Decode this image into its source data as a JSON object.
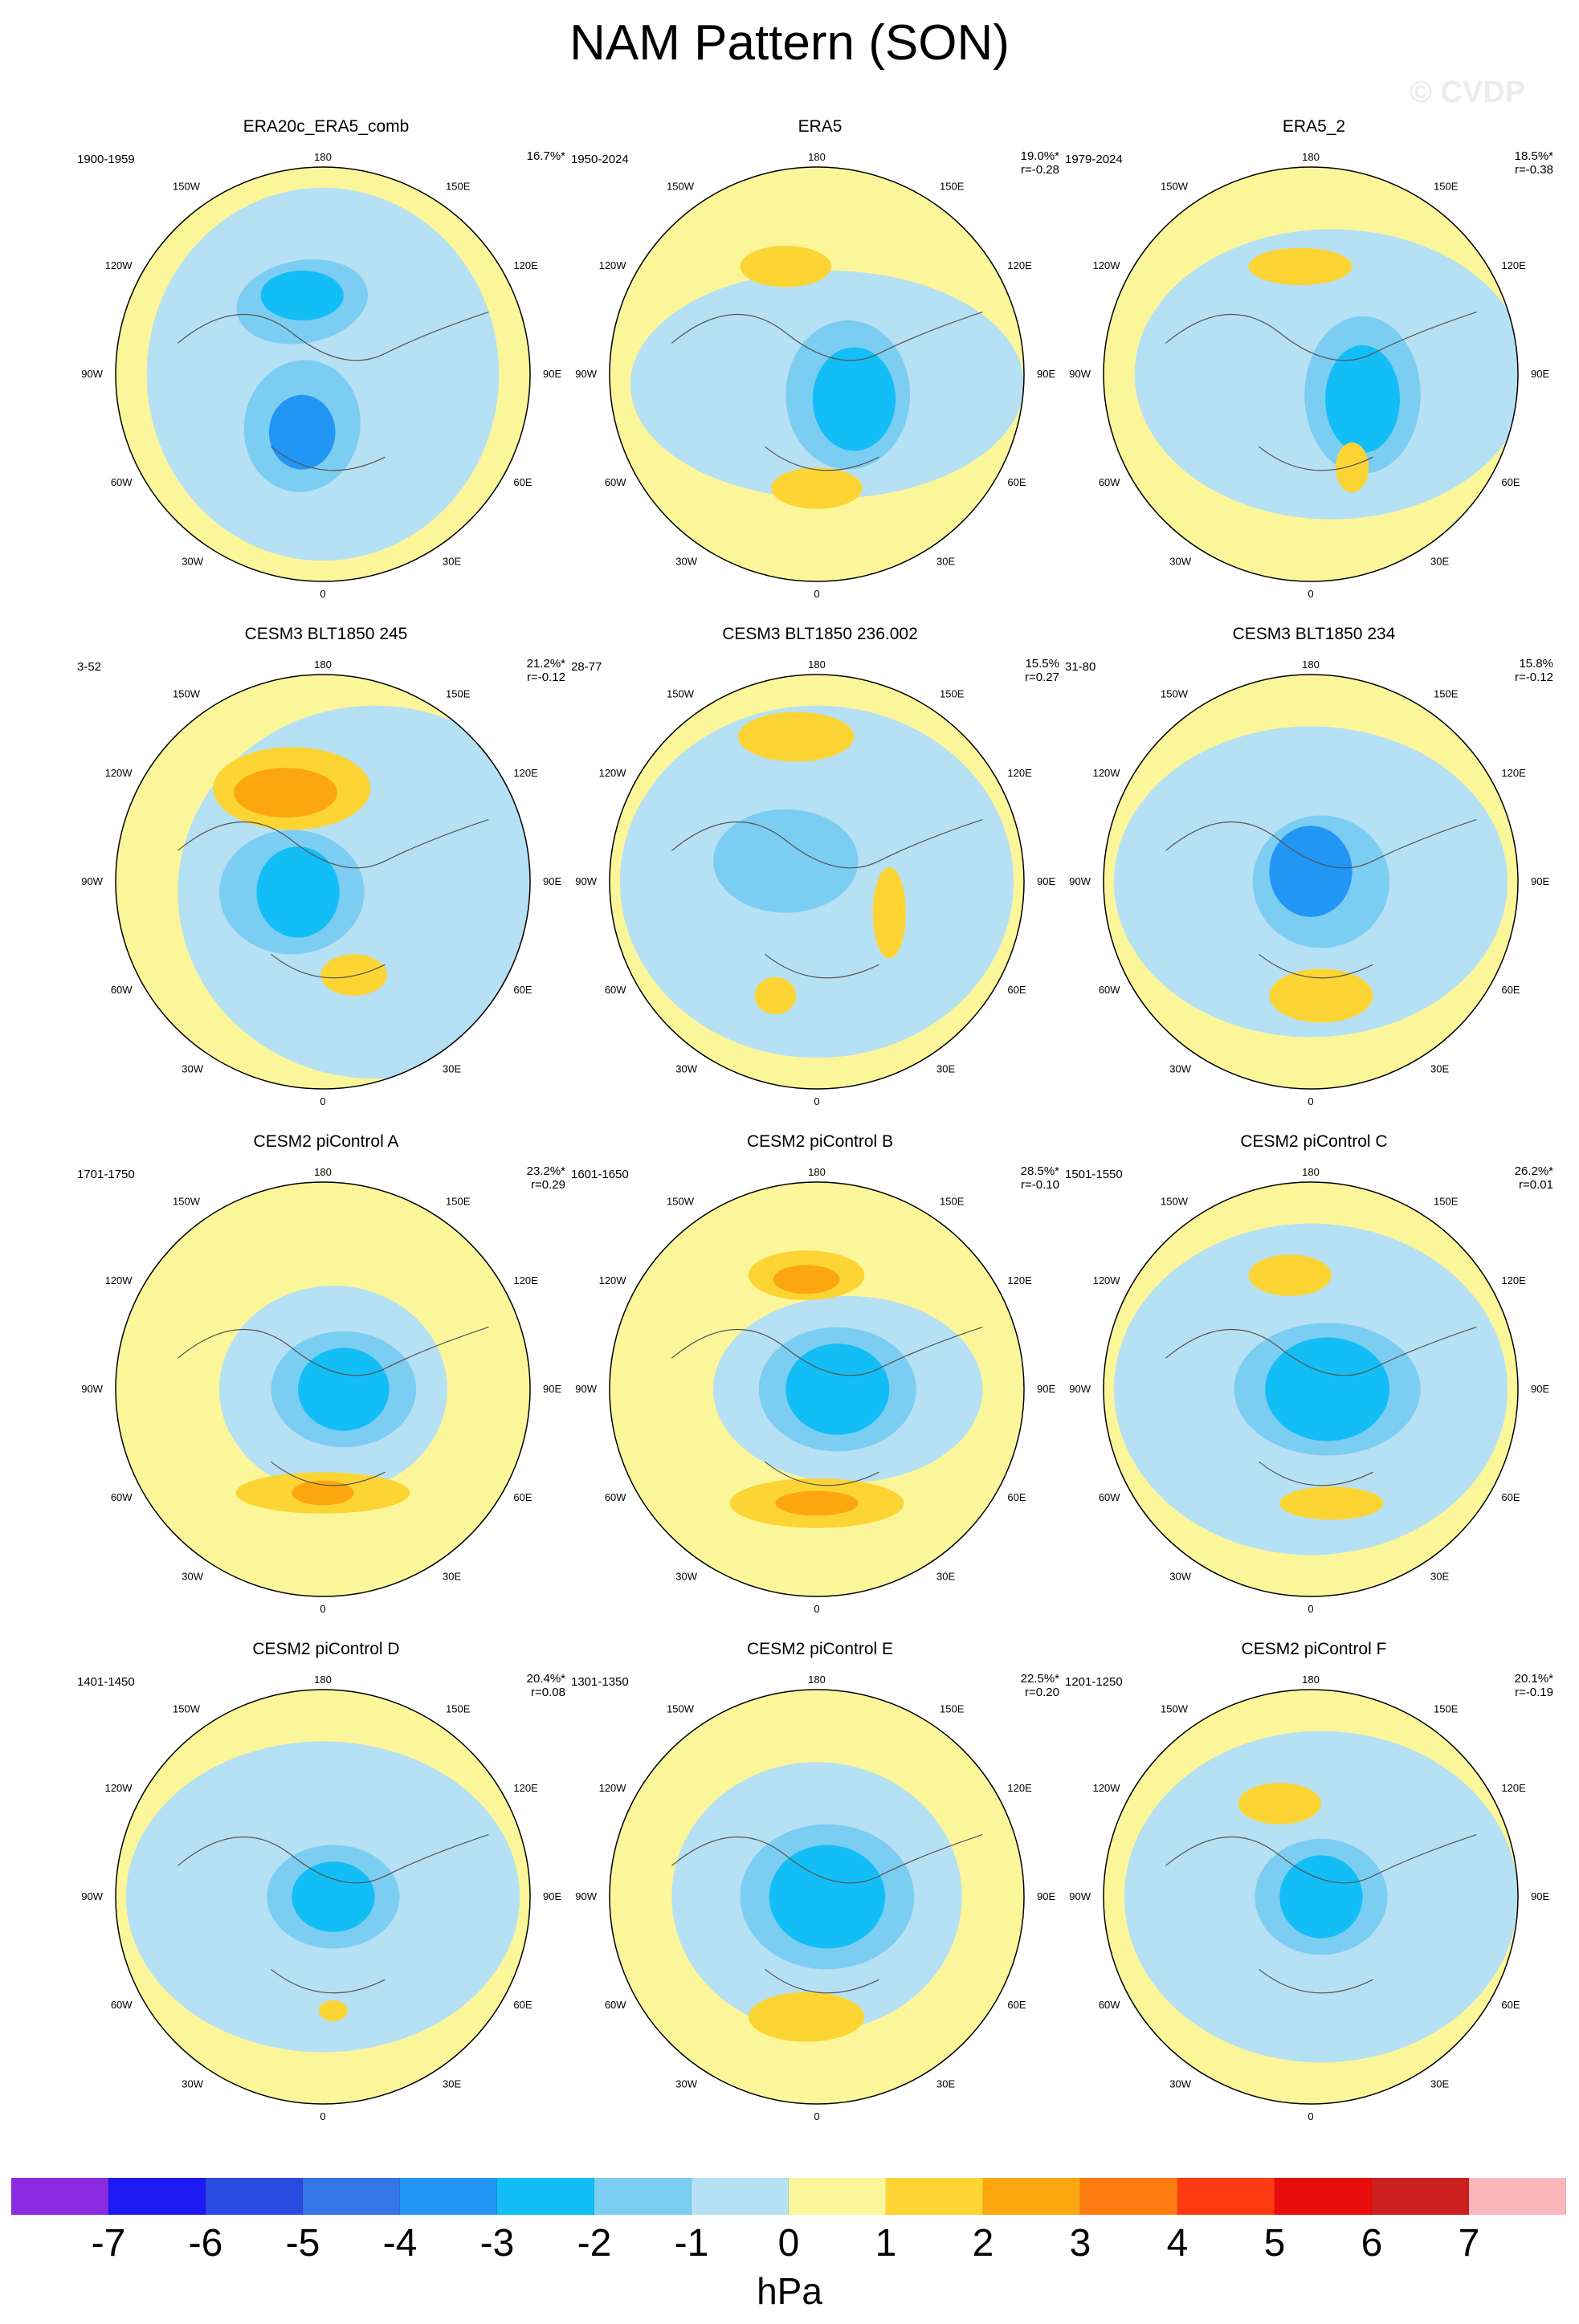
{
  "title": "NAM Pattern (SON)",
  "watermark": "© CVDP",
  "unit": "hPa",
  "colorbar": {
    "colors": [
      "#8a2be2",
      "#1c19f2",
      "#2a4bdf",
      "#3475e8",
      "#2196f5",
      "#12bef5",
      "#7ccdf2",
      "#b6e0f4",
      "#fbf69a",
      "#fcd535",
      "#fca710",
      "#fd7d10",
      "#fd3a10",
      "#e80c0c",
      "#cc2020",
      "#fbb8bb"
    ],
    "ticks": [
      "-7",
      "-6",
      "-5",
      "-4",
      "-3",
      "-2",
      "-1",
      "0",
      "1",
      "2",
      "3",
      "4",
      "5",
      "6",
      "7"
    ]
  },
  "lon_labels": {
    "top": "180",
    "bottom": "0",
    "left": "90W",
    "right": "90E",
    "ul1": "150W",
    "ul2": "120W",
    "ll1": "60W",
    "ll2": "30W",
    "ur1": "150E",
    "ur2": "120E",
    "lr1": "60E",
    "lr2": "30E"
  },
  "panels": [
    {
      "title": "ERA20c_ERA5_comb",
      "period": "1900-1959",
      "pct": "16.7%*",
      "r": ""
    },
    {
      "title": "ERA5",
      "period": "1950-2024",
      "pct": "19.0%*",
      "r": "r=-0.28"
    },
    {
      "title": "ERA5_2",
      "period": "1979-2024",
      "pct": "18.5%*",
      "r": "r=-0.38"
    },
    {
      "title": "CESM3 BLT1850 245",
      "period": "3-52",
      "pct": "21.2%*",
      "r": "r=-0.12"
    },
    {
      "title": "CESM3 BLT1850 236.002",
      "period": "28-77",
      "pct": "15.5%",
      "r": "r=0.27"
    },
    {
      "title": "CESM3 BLT1850 234",
      "period": "31-80",
      "pct": "15.8%",
      "r": "r=-0.12"
    },
    {
      "title": "CESM2 piControl A",
      "period": "1701-1750",
      "pct": "23.2%*",
      "r": "r=0.29"
    },
    {
      "title": "CESM2 piControl B",
      "period": "1601-1650",
      "pct": "28.5%*",
      "r": "r=-0.10"
    },
    {
      "title": "CESM2 piControl C",
      "period": "1501-1550",
      "pct": "26.2%*",
      "r": "r=0.01"
    },
    {
      "title": "CESM2 piControl D",
      "period": "1401-1450",
      "pct": "20.4%*",
      "r": "r=0.08"
    },
    {
      "title": "CESM2 piControl E",
      "period": "1301-1350",
      "pct": "22.5%*",
      "r": "r=0.20"
    },
    {
      "title": "CESM2 piControl F",
      "period": "1201-1250",
      "pct": "20.1%*",
      "r": "r=-0.19"
    }
  ]
}
